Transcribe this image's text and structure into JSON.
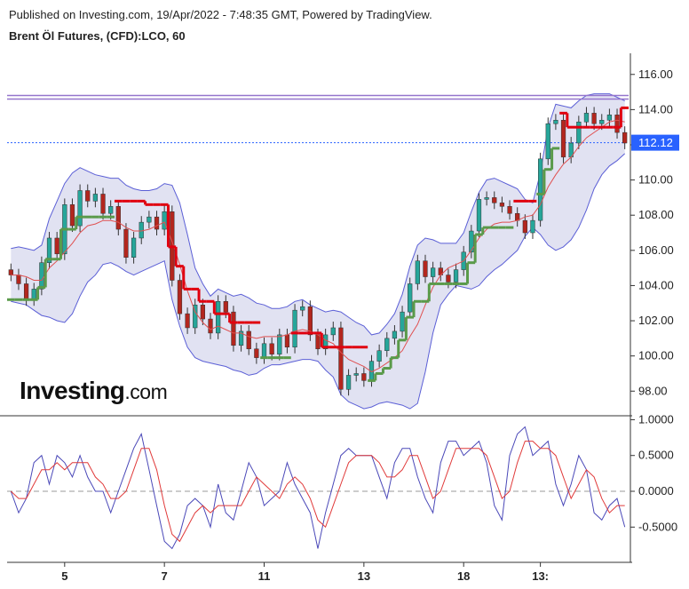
{
  "header": {
    "published": "Published on Investing.com, 19/Apr/2022 - 7:48:35 GMT, Powered by TradingView.",
    "symbol": "Brent Öl Futures, (CFD):LCO, 60"
  },
  "logo": {
    "main": "Investing",
    "suffix": ".com"
  },
  "colors": {
    "bull": "#26a69a",
    "bear": "#b3261e",
    "band_fill": "#c9cbe8",
    "band_line": "#5b5fd6",
    "ma": "#e05050",
    "trail_red": "#e0000f",
    "trail_green": "#5a9a4a",
    "resistance": "#9575cd",
    "price_tag": "#2962ff",
    "osc_k": "#4a48b8",
    "osc_d": "#e03a3a"
  },
  "chart_data": [
    {
      "type": "candlestick",
      "name": "Brent Öl Futures, (CFD):LCO, 60",
      "ylim": [
        96.6,
        117.2
      ],
      "y_ticks": [
        "116.00",
        "114.00",
        "112.00",
        "110.00",
        "108.00",
        "106.00",
        "104.00",
        "102.00",
        "100.00",
        "98.00"
      ],
      "x_ticks": [
        "5",
        "7",
        "11",
        "13",
        "18",
        "13:"
      ],
      "last_price": "112.12",
      "resistance_lines": [
        114.8,
        114.6
      ],
      "grid": false,
      "overlays": [
        "Bollinger Bands",
        "Moving Average",
        "Trailing Stop"
      ],
      "series": [
        {
          "name": "close",
          "values": [
            104.6,
            104.1,
            103.2,
            103.8,
            105.3,
            106.7,
            105.8,
            108.6,
            107.4,
            109.4,
            108.8,
            109.2,
            108.1,
            108.5,
            107.2,
            105.6,
            106.7,
            107.6,
            107.9,
            107.2,
            108.2,
            104.3,
            102.4,
            101.6,
            102.9,
            102.1,
            101.3,
            103.1,
            102.5,
            100.6,
            101.4,
            100.4,
            99.9,
            100.7,
            100.1,
            101.2,
            100.5,
            102.6,
            102.8,
            101.2,
            100.4,
            101.2,
            101.6,
            98.1,
            98.9,
            99.0,
            98.6,
            99.7,
            100.3,
            101.0,
            101.4,
            102.5,
            104.1,
            105.4,
            104.5,
            105.0,
            104.6,
            104.2,
            104.9,
            105.9,
            107.1,
            108.9,
            109.0,
            108.7,
            108.5,
            108.1,
            107.7,
            107.0,
            107.7,
            111.2,
            113.2,
            113.4,
            111.3,
            112.1,
            113.3,
            113.8,
            113.2,
            113.4,
            113.7,
            112.7,
            112.1
          ]
        },
        {
          "name": "bollinger_upper",
          "values": [
            106.1,
            106.2,
            106.1,
            106.0,
            106.3,
            107.8,
            108.8,
            109.8,
            110.4,
            110.7,
            110.5,
            110.3,
            110.2,
            110.1,
            110.1,
            109.7,
            109.5,
            109.4,
            109.4,
            109.5,
            109.8,
            109.7,
            108.7,
            106.9,
            105.0,
            104.1,
            103.4,
            103.8,
            103.6,
            103.4,
            103.5,
            103.3,
            103.0,
            102.9,
            102.7,
            102.7,
            102.8,
            103.1,
            103.2,
            102.9,
            102.7,
            102.5,
            102.6,
            102.5,
            102.2,
            101.9,
            101.7,
            101.2,
            101.3,
            101.8,
            102.4,
            103.5,
            105.1,
            106.3,
            106.7,
            106.6,
            106.4,
            106.4,
            106.4,
            107.0,
            108.2,
            109.3,
            110.0,
            110.1,
            109.9,
            109.7,
            109.5,
            108.9,
            108.7,
            110.4,
            113.0,
            114.3,
            114.2,
            114.1,
            114.5,
            114.8,
            114.9,
            114.9,
            114.9,
            114.7,
            114.5
          ]
        },
        {
          "name": "bollinger_lower",
          "values": [
            103.1,
            103.0,
            102.9,
            102.6,
            102.3,
            102.2,
            102.0,
            101.9,
            102.4,
            103.4,
            104.2,
            104.6,
            105.2,
            105.3,
            105.1,
            104.8,
            104.6,
            104.8,
            105.0,
            105.2,
            105.4,
            103.2,
            101.7,
            100.5,
            99.9,
            99.7,
            99.6,
            99.5,
            99.4,
            99.2,
            99.1,
            98.9,
            99.0,
            99.3,
            99.5,
            99.5,
            99.6,
            99.7,
            99.8,
            99.8,
            99.7,
            99.2,
            98.8,
            97.8,
            97.4,
            97.2,
            97.0,
            97.1,
            97.3,
            97.4,
            97.3,
            97.2,
            97.0,
            97.3,
            99.1,
            101.3,
            102.9,
            103.5,
            104.0,
            103.9,
            103.8,
            104.0,
            104.5,
            104.9,
            105.2,
            105.6,
            106.0,
            106.8,
            107.3,
            106.9,
            106.3,
            106.0,
            106.2,
            106.6,
            107.3,
            108.3,
            109.5,
            110.3,
            110.8,
            111.1,
            111.5
          ]
        },
        {
          "name": "moving_average",
          "values": [
            104.6,
            104.6,
            104.5,
            104.3,
            104.3,
            105.0,
            105.4,
            105.9,
            106.4,
            107.0,
            107.4,
            107.5,
            107.7,
            107.7,
            107.6,
            107.3,
            107.1,
            107.1,
            107.2,
            107.4,
            107.6,
            106.5,
            105.2,
            103.7,
            102.5,
            101.9,
            101.5,
            101.7,
            101.5,
            101.3,
            101.3,
            101.1,
            101.0,
            101.1,
            101.1,
            101.1,
            101.2,
            101.4,
            101.5,
            101.4,
            101.2,
            100.9,
            100.7,
            100.2,
            99.8,
            99.6,
            99.4,
            99.1,
            99.3,
            99.6,
            99.9,
            100.3,
            101.1,
            101.8,
            102.9,
            103.9,
            104.6,
            105.0,
            105.2,
            105.4,
            106.0,
            106.7,
            107.2,
            107.5,
            107.6,
            107.6,
            107.7,
            107.9,
            108.0,
            108.6,
            109.6,
            110.3,
            110.9,
            111.3,
            111.9,
            112.4,
            112.7,
            113.0,
            113.3,
            113.4,
            113.3
          ]
        },
        {
          "name": "trailing_stop",
          "values": [
            103.2,
            103.2,
            103.2,
            103.2,
            103.9,
            105.5,
            105.5,
            107.2,
            107.2,
            107.9,
            107.9,
            107.9,
            107.9,
            107.9,
            108.8,
            108.8,
            108.8,
            108.8,
            108.6,
            108.6,
            108.6,
            106.2,
            105.1,
            103.8,
            103.8,
            103.1,
            103.1,
            102.4,
            102.4,
            101.9,
            101.9,
            101.9,
            101.9,
            99.9,
            99.9,
            99.9,
            99.9,
            101.3,
            101.3,
            101.3,
            101.3,
            100.5,
            100.5,
            100.5,
            100.5,
            100.5,
            100.5,
            98.6,
            99.0,
            99.3,
            99.9,
            100.9,
            102.2,
            103.1,
            103.1,
            104.1,
            104.1,
            104.1,
            104.1,
            104.1,
            105.3,
            106.9,
            107.3,
            107.3,
            107.3,
            107.3,
            108.8,
            108.8,
            108.8,
            109.2,
            110.6,
            111.8,
            113.8,
            113.0,
            113.0,
            113.0,
            113.0,
            113.0,
            113.0,
            113.0,
            114.1
          ]
        },
        {
          "name": "trailing_stop_side",
          "values": [
            "g",
            "g",
            "g",
            "g",
            "g",
            "g",
            "g",
            "g",
            "g",
            "g",
            "g",
            "g",
            "g",
            "g",
            "r",
            "r",
            "r",
            "r",
            "r",
            "r",
            "r",
            "r",
            "r",
            "r",
            "r",
            "r",
            "r",
            "r",
            "r",
            "r",
            "r",
            "r",
            "r",
            "g",
            "g",
            "g",
            "g",
            "r",
            "r",
            "r",
            "r",
            "r",
            "r",
            "r",
            "r",
            "r",
            "r",
            "g",
            "g",
            "g",
            "g",
            "g",
            "g",
            "g",
            "g",
            "g",
            "g",
            "g",
            "g",
            "g",
            "g",
            "g",
            "g",
            "g",
            "g",
            "g",
            "r",
            "r",
            "r",
            "g",
            "g",
            "g",
            "r",
            "r",
            "r",
            "r",
            "r",
            "r",
            "r",
            "r",
            "r"
          ]
        }
      ]
    },
    {
      "type": "line",
      "name": "oscillator",
      "ylim": [
        -0.98,
        1.03
      ],
      "y_ticks": [
        "1.0000",
        "0.5000",
        "0.0000",
        "-0.5000"
      ],
      "reference_line": 0,
      "series": [
        {
          "name": "k",
          "values": [
            0.0,
            -0.3,
            -0.1,
            0.4,
            0.5,
            0.1,
            0.5,
            0.4,
            0.2,
            0.5,
            0.2,
            0.0,
            0.0,
            -0.3,
            0.0,
            0.3,
            0.6,
            0.8,
            0.3,
            -0.2,
            -0.7,
            -0.8,
            -0.6,
            -0.2,
            -0.1,
            -0.2,
            -0.5,
            0.1,
            -0.3,
            -0.4,
            0.0,
            0.4,
            0.2,
            -0.2,
            -0.1,
            0.0,
            0.4,
            0.1,
            -0.1,
            -0.3,
            -0.8,
            -0.3,
            0.1,
            0.5,
            0.6,
            0.5,
            0.5,
            0.5,
            0.2,
            -0.1,
            0.4,
            0.6,
            0.6,
            0.2,
            -0.1,
            -0.3,
            0.4,
            0.7,
            0.7,
            0.5,
            0.6,
            0.7,
            0.4,
            -0.2,
            -0.4,
            0.5,
            0.8,
            0.9,
            0.5,
            0.6,
            0.7,
            0.1,
            -0.2,
            0.1,
            0.5,
            0.3,
            -0.3,
            -0.4,
            -0.2,
            -0.1,
            -0.5
          ]
        },
        {
          "name": "d",
          "values": [
            0.0,
            -0.1,
            -0.1,
            0.1,
            0.3,
            0.3,
            0.4,
            0.3,
            0.4,
            0.4,
            0.4,
            0.2,
            0.1,
            -0.1,
            -0.1,
            0.0,
            0.3,
            0.6,
            0.6,
            0.3,
            -0.2,
            -0.6,
            -0.7,
            -0.5,
            -0.3,
            -0.2,
            -0.3,
            -0.2,
            -0.2,
            -0.2,
            -0.2,
            0.0,
            0.2,
            0.1,
            0.0,
            -0.1,
            0.1,
            0.2,
            0.1,
            -0.1,
            -0.4,
            -0.5,
            -0.2,
            0.1,
            0.4,
            0.5,
            0.5,
            0.5,
            0.4,
            0.2,
            0.2,
            0.3,
            0.5,
            0.5,
            0.2,
            -0.1,
            0.0,
            0.3,
            0.6,
            0.6,
            0.6,
            0.6,
            0.5,
            0.2,
            -0.1,
            0.0,
            0.4,
            0.7,
            0.7,
            0.6,
            0.6,
            0.5,
            0.2,
            -0.1,
            0.1,
            0.3,
            0.2,
            -0.1,
            -0.3,
            -0.2,
            -0.2
          ]
        }
      ]
    }
  ]
}
